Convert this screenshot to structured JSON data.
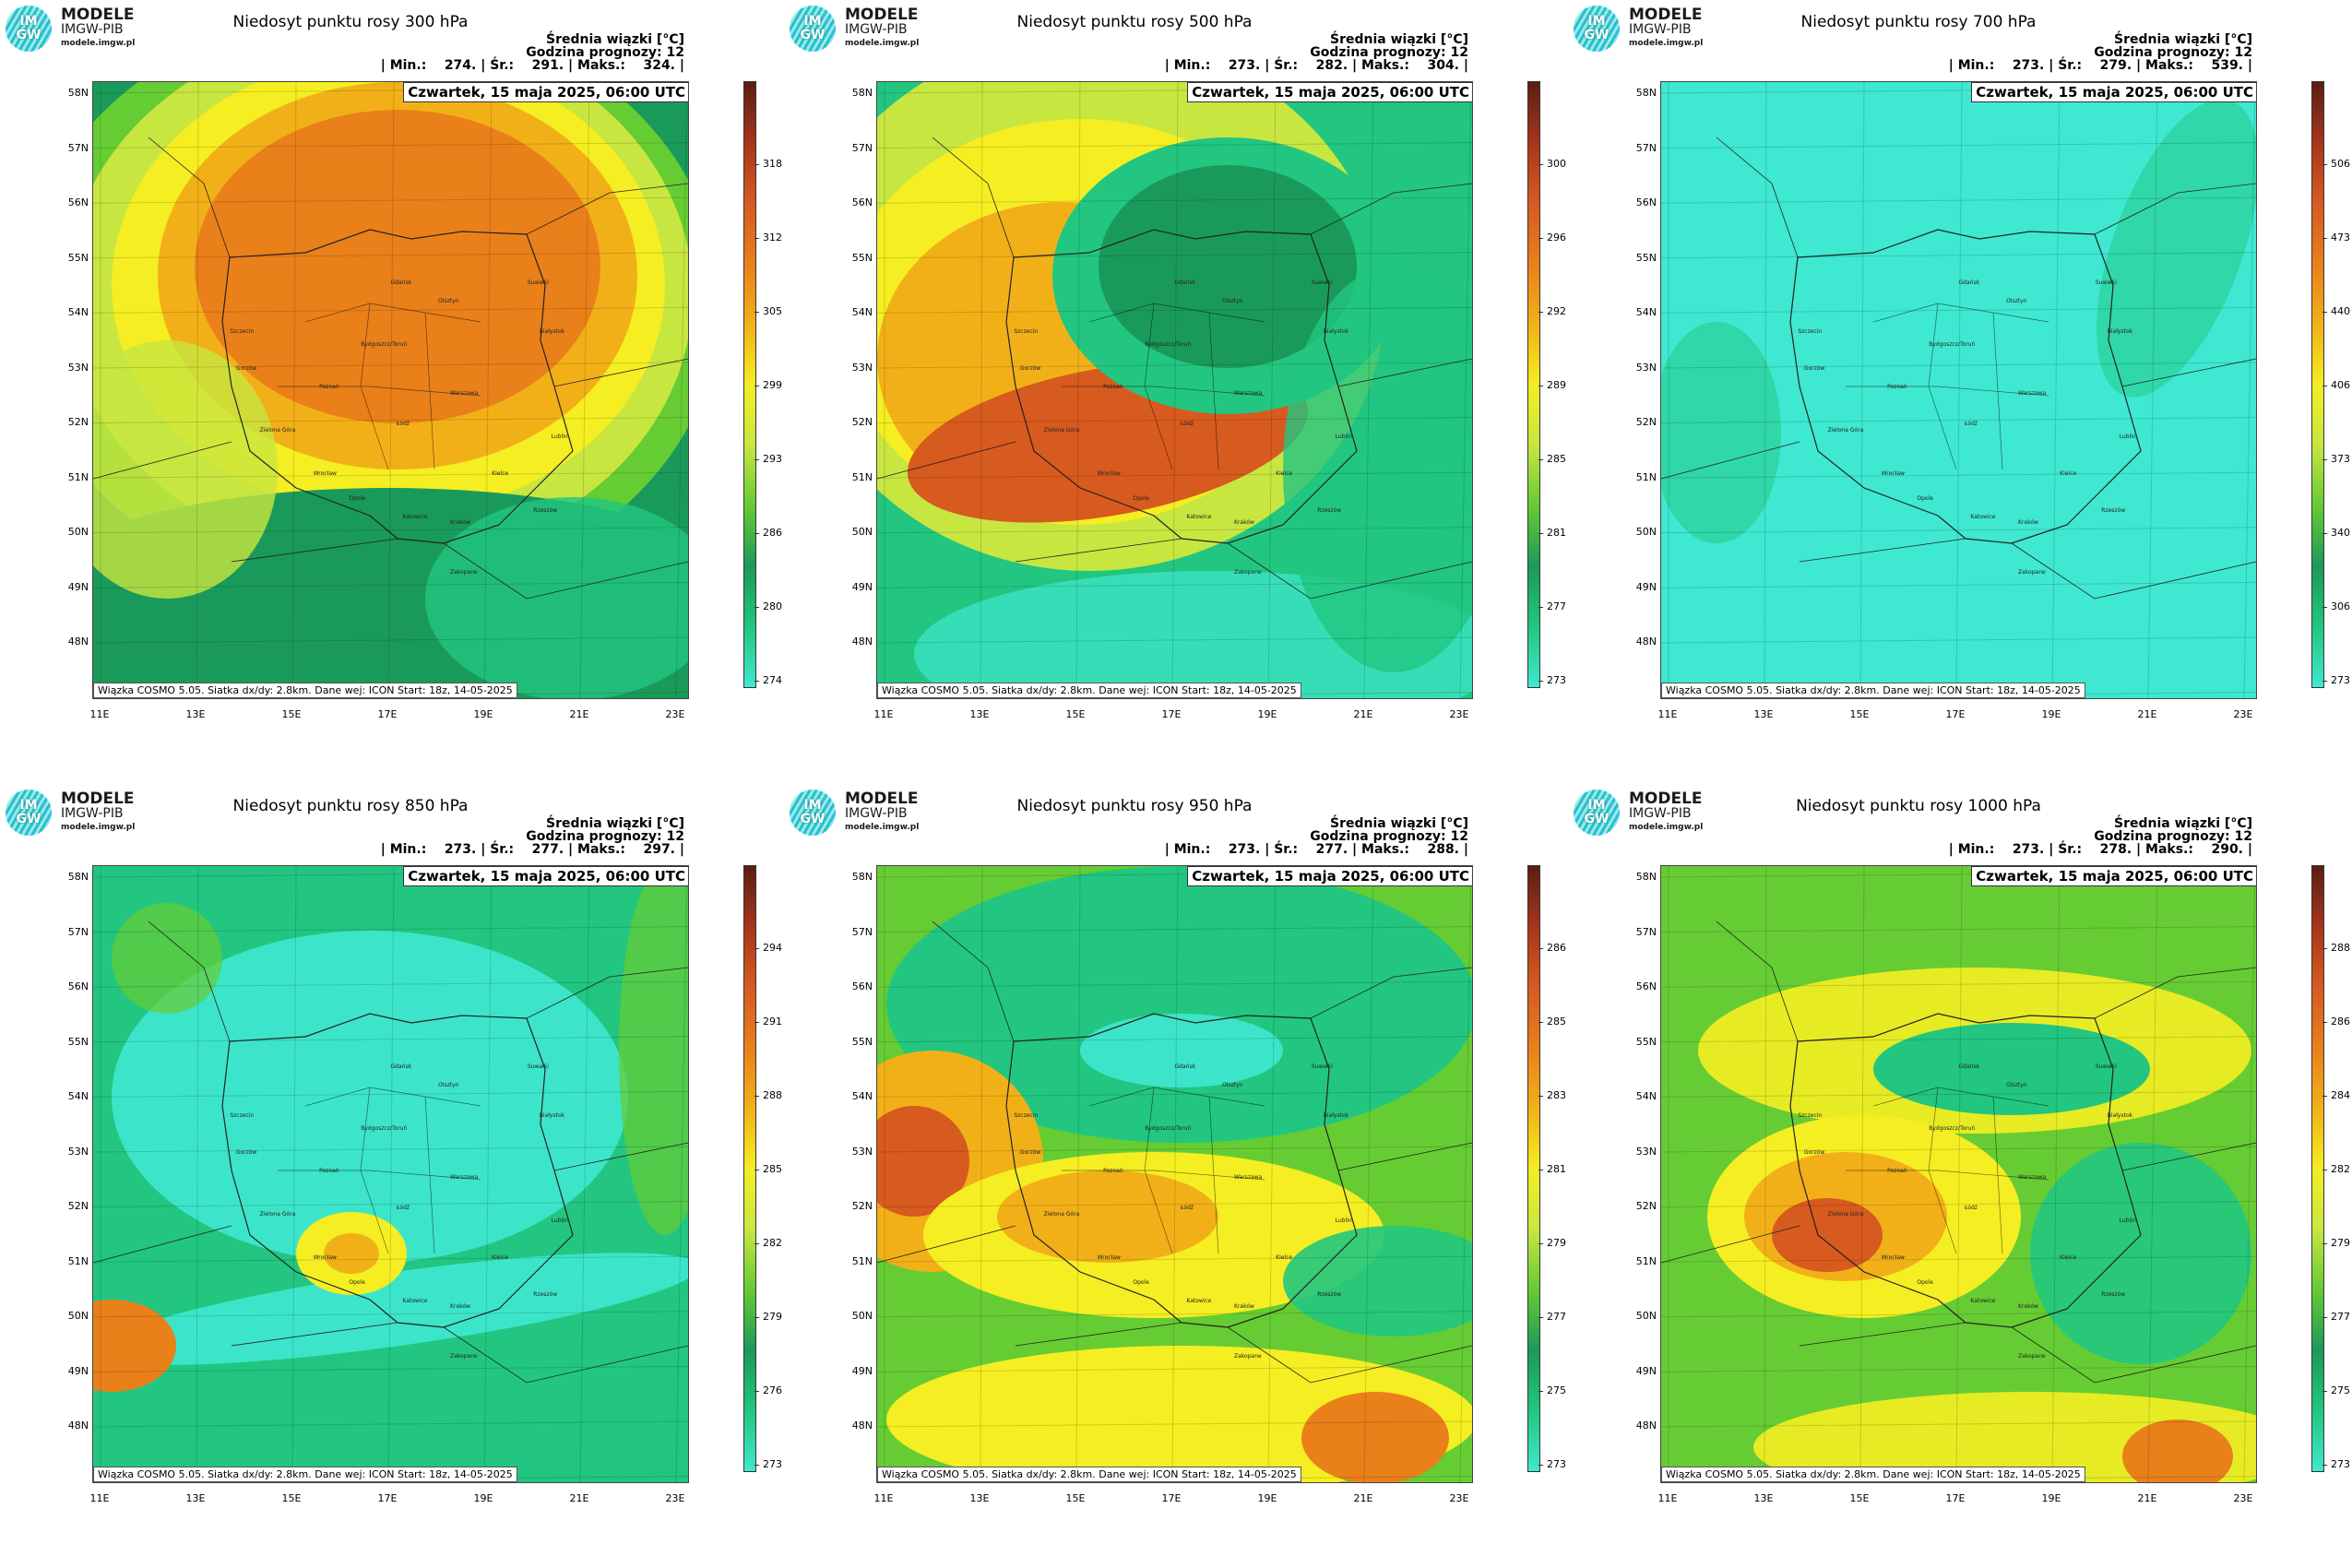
{
  "logo": {
    "mark_top": "IM",
    "mark_bottom": "GW",
    "name": "MODELE",
    "org": "IMGW-PIB",
    "site": "modele.imgw.pl"
  },
  "common": {
    "subtitle": "Średnia wiązki [°C]",
    "forecast_hour": "Godzina prognozy: 12",
    "date": "Czwartek, 15 maja 2025, 06:00 UTC",
    "credit": "Wiązka COSMO 5.05. Siatka dx/dy: 2.8km. Dane wej: ICON Start: 18z, 14-05-2025",
    "lat_labels": [
      "58N",
      "57N",
      "56N",
      "55N",
      "54N",
      "53N",
      "52N",
      "51N",
      "50N",
      "49N",
      "48N"
    ],
    "lon_labels": [
      "11E",
      "13E",
      "15E",
      "17E",
      "19E",
      "21E",
      "23E"
    ],
    "cities": [
      "Gdańsk",
      "Olsztyn",
      "Suwałki",
      "Szczecin",
      "Bydgoszcz/Toruń",
      "Białystok",
      "Gorzów",
      "Poznań",
      "Warszawa",
      "Zielona Góra",
      "Łódź",
      "Lublin",
      "Wrocław",
      "Kielce",
      "Opole",
      "Katowice",
      "Kraków",
      "Rzeszów",
      "Zakopane"
    ]
  },
  "panels": [
    {
      "title": "Niedosyt punktu rosy 300 hPa",
      "stats": "| Min.:    274. | Śr.:    291. | Maks.:    324. |",
      "colorbar_ticks": [
        "318",
        "312",
        "305",
        "299",
        "293",
        "286",
        "280",
        "274"
      ],
      "pattern": "ring-high"
    },
    {
      "title": "Niedosyt punktu rosy 500 hPa",
      "stats": "| Min.:    273. | Śr.:    282. | Maks.:    304. |",
      "colorbar_ticks": [
        "300",
        "296",
        "292",
        "289",
        "285",
        "281",
        "277",
        "273"
      ],
      "pattern": "swirl"
    },
    {
      "title": "Niedosyt punktu rosy 700 hPa",
      "stats": "| Min.:    273. | Śr.:    279. | Maks.:    539. |",
      "colorbar_ticks": [
        "506",
        "473",
        "440",
        "406",
        "373",
        "340",
        "306",
        "273"
      ],
      "pattern": "flat"
    },
    {
      "title": "Niedosyt punktu rosy 850 hPa",
      "stats": "| Min.:    273. | Śr.:    277. | Maks.:    297. |",
      "colorbar_ticks": [
        "294",
        "291",
        "288",
        "285",
        "282",
        "279",
        "276",
        "273"
      ],
      "pattern": "low-green"
    },
    {
      "title": "Niedosyt punktu rosy 950 hPa",
      "stats": "| Min.:    273. | Śr.:    277. | Maks.:    288. |",
      "colorbar_ticks": [
        "286",
        "285",
        "283",
        "281",
        "279",
        "277",
        "275",
        "273"
      ],
      "pattern": "mixed"
    },
    {
      "title": "Niedosyt punktu rosy 1000 hPa",
      "stats": "| Min.:    273. | Śr.:    278. | Maks.:    290. |",
      "colorbar_ticks": [
        "288",
        "286",
        "284",
        "282",
        "279",
        "277",
        "275",
        "273"
      ],
      "pattern": "warm-mixed"
    }
  ],
  "colors": {
    "c0": "#3fe8d0",
    "c1": "#22c680",
    "c2": "#1a9a5a",
    "c3": "#66cc33",
    "c4": "#c8e640",
    "c5": "#f5ee22",
    "c6": "#f2b018",
    "c7": "#e9801a",
    "c8": "#d75a1f",
    "c9": "#a8351e",
    "c10": "#5a1d12"
  }
}
